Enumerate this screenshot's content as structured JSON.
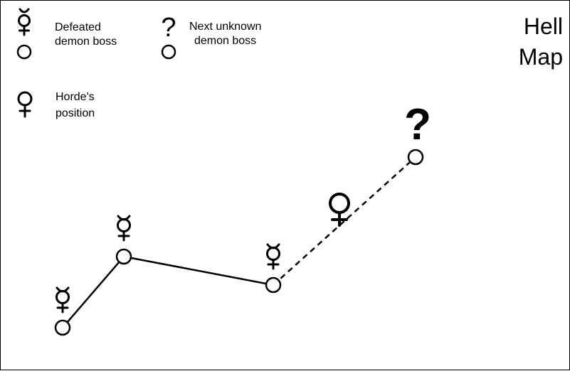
{
  "title": [
    "Hell",
    "Map"
  ],
  "legend": {
    "defeated": [
      "Defeated",
      "demon boss"
    ],
    "unknown": [
      "Next unknown",
      "demon boss"
    ],
    "horde": [
      "Horde's",
      "position"
    ],
    "unknown_symbol": "?"
  },
  "map": {
    "unknown_symbol": "?",
    "defeated_icon": "mercury-symbol-icon",
    "horde_icon": "venus-symbol-icon",
    "solid_path": "defeated-route",
    "dashed_path": "planned-route"
  },
  "colors": {
    "stroke": "#000000",
    "background": "#ffffff"
  }
}
